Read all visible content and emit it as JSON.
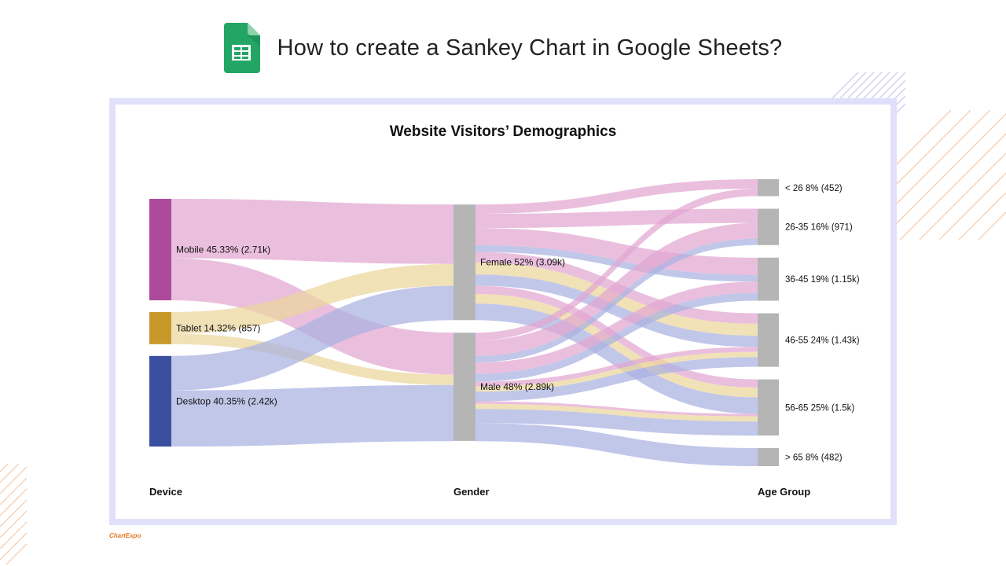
{
  "page": {
    "title": "How to create a Sankey Chart in Google Sheets?",
    "icon": "google-sheets-icon",
    "brand": "ChartExpo",
    "colors": {
      "frame": "#e1e0fb",
      "sheets_green": "#23a566",
      "deco_orange": "#f6c9a7",
      "deco_lavender": "#c9c6f4"
    }
  },
  "chart_data": {
    "type": "sankey",
    "title": "Website Visitors’ Demographics",
    "stage_labels": [
      "Device",
      "Gender",
      "Age Group"
    ],
    "nodes": [
      {
        "id": "mobile",
        "stage": 0,
        "label": "Mobile 45.33% (2.71k)",
        "value": 2710,
        "color": "#ad4a9c"
      },
      {
        "id": "tablet",
        "stage": 0,
        "label": "Tablet 14.32% (857)",
        "value": 857,
        "color": "#c8982b"
      },
      {
        "id": "desktop",
        "stage": 0,
        "label": "Desktop 40.35% (2.42k)",
        "value": 2420,
        "color": "#3a4fa0"
      },
      {
        "id": "female",
        "stage": 1,
        "label": "Female 52% (3.09k)",
        "value": 3090,
        "color": "#b5b5b5"
      },
      {
        "id": "male",
        "stage": 1,
        "label": "Male 48% (2.89k)",
        "value": 2890,
        "color": "#b5b5b5"
      },
      {
        "id": "a26",
        "stage": 2,
        "label": "< 26 8% (452)",
        "value": 452,
        "color": "#b5b5b5"
      },
      {
        "id": "a26_35",
        "stage": 2,
        "label": "26-35 16% (971)",
        "value": 971,
        "color": "#b5b5b5"
      },
      {
        "id": "a36_45",
        "stage": 2,
        "label": "36-45 19% (1.15k)",
        "value": 1150,
        "color": "#b5b5b5"
      },
      {
        "id": "a46_55",
        "stage": 2,
        "label": "46-55 24% (1.43k)",
        "value": 1430,
        "color": "#b5b5b5"
      },
      {
        "id": "a56_65",
        "stage": 2,
        "label": "56-65 25% (1.5k)",
        "value": 1500,
        "color": "#b5b5b5"
      },
      {
        "id": "a65",
        "stage": 2,
        "label": "> 65 8% (482)",
        "value": 482,
        "color": "#b5b5b5"
      }
    ],
    "links": [
      {
        "source": "mobile",
        "target": "female",
        "value": 1590,
        "color": "#e2a6d1"
      },
      {
        "source": "mobile",
        "target": "male",
        "value": 1120,
        "color": "#e2a6d1"
      },
      {
        "source": "tablet",
        "target": "female",
        "value": 580,
        "color": "#ecd69b"
      },
      {
        "source": "tablet",
        "target": "male",
        "value": 277,
        "color": "#ecd69b"
      },
      {
        "source": "desktop",
        "target": "female",
        "value": 920,
        "color": "#a9b2e0"
      },
      {
        "source": "desktop",
        "target": "male",
        "value": 1500,
        "color": "#a9b2e0"
      },
      {
        "source": "female",
        "target": "a26",
        "value": 250,
        "color": "#e2a6d1"
      },
      {
        "source": "female",
        "target": "a26_35",
        "value": 380,
        "color": "#e2a6d1"
      },
      {
        "source": "female",
        "target": "a36_45",
        "value": 460,
        "color": "#e2a6d1"
      },
      {
        "source": "female",
        "target": "a46_55",
        "value": 280,
        "color": "#e2a6d1"
      },
      {
        "source": "female",
        "target": "a56_65",
        "value": 220,
        "color": "#e2a6d1"
      },
      {
        "source": "female",
        "target": "a46_55",
        "value": 320,
        "color": "#ecd69b"
      },
      {
        "source": "female",
        "target": "a56_65",
        "value": 260,
        "color": "#ecd69b"
      },
      {
        "source": "female",
        "target": "a36_45",
        "value": 180,
        "color": "#a9b2e0"
      },
      {
        "source": "female",
        "target": "a46_55",
        "value": 300,
        "color": "#a9b2e0"
      },
      {
        "source": "female",
        "target": "a56_65",
        "value": 440,
        "color": "#a9b2e0"
      },
      {
        "source": "male",
        "target": "a26",
        "value": 202,
        "color": "#e2a6d1"
      },
      {
        "source": "male",
        "target": "a26_35",
        "value": 420,
        "color": "#e2a6d1"
      },
      {
        "source": "male",
        "target": "a36_45",
        "value": 300,
        "color": "#e2a6d1"
      },
      {
        "source": "male",
        "target": "a46_55",
        "value": 130,
        "color": "#e2a6d1"
      },
      {
        "source": "male",
        "target": "a56_65",
        "value": 68,
        "color": "#e2a6d1"
      },
      {
        "source": "male",
        "target": "a46_55",
        "value": 140,
        "color": "#ecd69b"
      },
      {
        "source": "male",
        "target": "a56_65",
        "value": 137,
        "color": "#ecd69b"
      },
      {
        "source": "male",
        "target": "a26_35",
        "value": 171,
        "color": "#a9b2e0"
      },
      {
        "source": "male",
        "target": "a36_45",
        "value": 210,
        "color": "#a9b2e0"
      },
      {
        "source": "male",
        "target": "a46_55",
        "value": 260,
        "color": "#a9b2e0"
      },
      {
        "source": "male",
        "target": "a56_65",
        "value": 377,
        "color": "#a9b2e0"
      },
      {
        "source": "male",
        "target": "a65",
        "value": 482,
        "color": "#a9b2e0"
      }
    ]
  }
}
